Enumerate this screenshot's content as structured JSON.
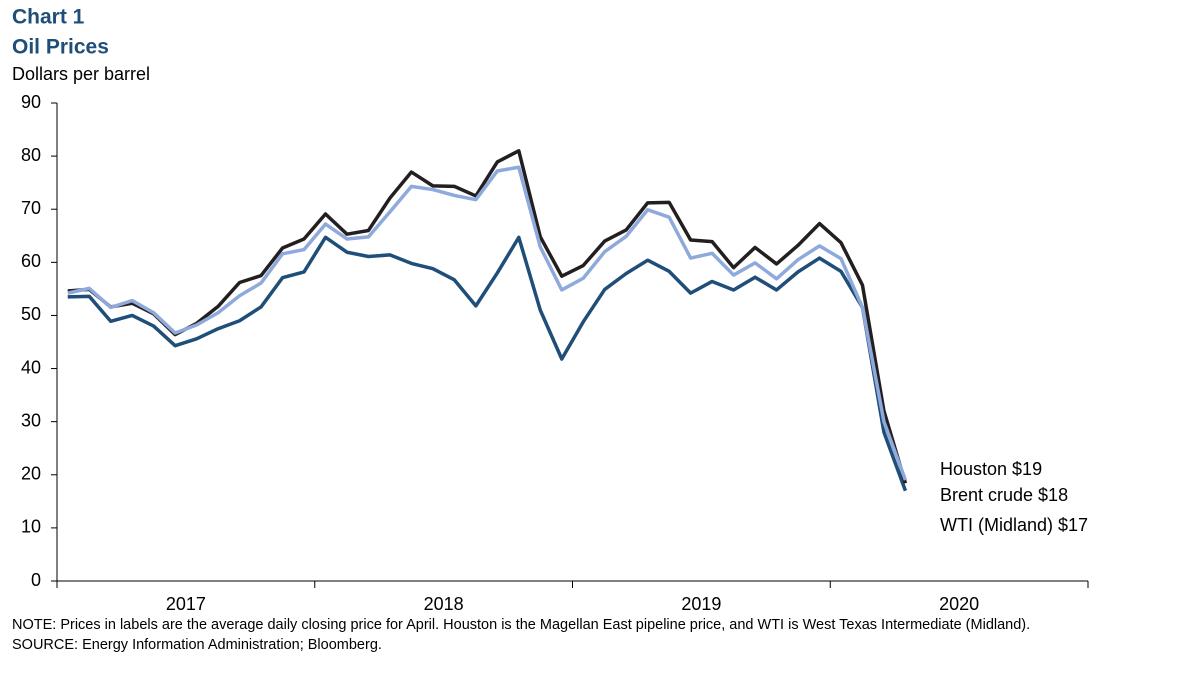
{
  "chart_data": {
    "type": "line",
    "title": "Chart 1",
    "subtitle": "Oil Prices",
    "y_label": "Dollars per barrel",
    "year_labels": [
      "2017",
      "2018",
      "2019",
      "2020"
    ],
    "categories": [
      null,
      null,
      null,
      null,
      null,
      null,
      null,
      null,
      null,
      null,
      null,
      null,
      null,
      null,
      null,
      null,
      null,
      null,
      null,
      null,
      null,
      null,
      null,
      null,
      null,
      null,
      null,
      null,
      null,
      null,
      null,
      null,
      null,
      null,
      null,
      null,
      null,
      null,
      null,
      null,
      null,
      null,
      null,
      null,
      null,
      null,
      null,
      null
    ],
    "ylim": [
      0,
      90
    ],
    "yticks": [
      0,
      10,
      20,
      30,
      40,
      50,
      60,
      70,
      80,
      90
    ],
    "series": [
      {
        "name": "WTI (Midland)",
        "color": "#1f4e79",
        "values": [
          53.5,
          53.6,
          48.9,
          50,
          48,
          44.3,
          45.6,
          47.5,
          49,
          51.6,
          57.1,
          58.2,
          64.7,
          61.9,
          61.1,
          61.4,
          59.8,
          58.8,
          56.7,
          51.8,
          58,
          64.7,
          51,
          41.8,
          48.8,
          54.9,
          57.9,
          60.4,
          58.3,
          54.2,
          56.4,
          54.8,
          57.2,
          54.8,
          58.2,
          60.8,
          58.3,
          51.5,
          28,
          17,
          null,
          null,
          null,
          null,
          null,
          null,
          null,
          null
        ]
      },
      {
        "name": "Houston",
        "color": "#8ea9db",
        "values": [
          54.2,
          55.1,
          51.5,
          52.8,
          50.5,
          46.7,
          48.2,
          50.5,
          53.7,
          56.1,
          61.6,
          62.4,
          67.2,
          64.4,
          64.8,
          69.5,
          74.3,
          73.7,
          72.6,
          71.8,
          77.2,
          77.9,
          62.9,
          54.8,
          57,
          62,
          64.9,
          69.9,
          68.5,
          60.8,
          61.7,
          57.6,
          59.9,
          56.9,
          60.5,
          63.1,
          60.7,
          51.5,
          30,
          19,
          null,
          null,
          null,
          null,
          null,
          null,
          null,
          null
        ]
      },
      {
        "name": "Brent crude",
        "color": "#231f20",
        "values": [
          54.6,
          54.9,
          51.6,
          52.3,
          50.3,
          46.4,
          48.5,
          51.7,
          56.2,
          57.5,
          62.7,
          64.4,
          69.1,
          65.3,
          66,
          72.1,
          77,
          74.4,
          74.3,
          72.5,
          78.9,
          81,
          64.8,
          57.4,
          59.4,
          64,
          66.1,
          71.2,
          71.3,
          64.2,
          63.9,
          59,
          62.8,
          59.7,
          63.2,
          67.3,
          63.7,
          55.7,
          32,
          18.4,
          null,
          null,
          null,
          null,
          null,
          null,
          null,
          null
        ]
      }
    ],
    "annotations": [
      {
        "text": "Houston $19",
        "color": "#8ea9db"
      },
      {
        "text": "Brent crude $18",
        "color": "#231f20"
      },
      {
        "text": "WTI (Midland) $17",
        "color": "#1f4e79"
      }
    ],
    "notes": [
      "NOTE: Prices in labels are the average daily closing price for April. Houston is the Magellan East pipeline price, and WTI is West Texas Intermediate (Midland).",
      "SOURCE: Energy Information Administration; Bloomberg."
    ]
  }
}
